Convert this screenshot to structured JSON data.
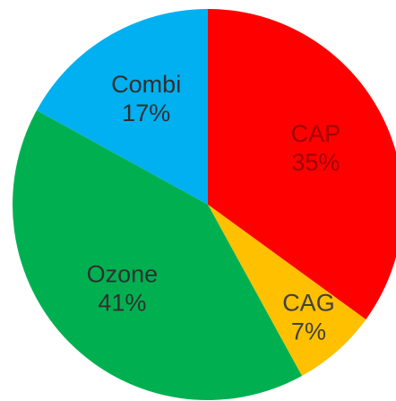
{
  "chart_data": {
    "type": "pie",
    "categories": [
      "CAP",
      "CAG",
      "Ozone",
      "Combi"
    ],
    "values": [
      35,
      7,
      41,
      17
    ],
    "value_labels": [
      "35%",
      "7%",
      "41%",
      "17%"
    ],
    "colors": [
      "#ff0000",
      "#ffc000",
      "#00b050",
      "#00b0f0"
    ],
    "start_angle": 0,
    "direction": "clockwise"
  }
}
